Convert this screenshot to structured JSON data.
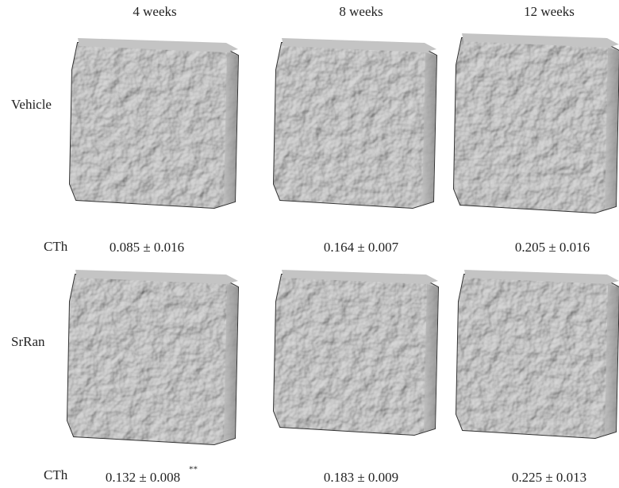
{
  "columns": [
    "4 weeks",
    "8 weeks",
    "12 weeks"
  ],
  "rows": [
    {
      "label": "Vehicle",
      "cth_label": "CTh",
      "values": [
        "0.085 ± 0.016",
        "0.164 ± 0.007",
        "0.205 ± 0.016"
      ]
    },
    {
      "label": "SrRan",
      "cth_label": "CTh",
      "values": [
        "0.132 ± 0.008",
        "0.183 ± 0.009",
        "0.225 ± 0.013"
      ],
      "significance": "**"
    }
  ]
}
